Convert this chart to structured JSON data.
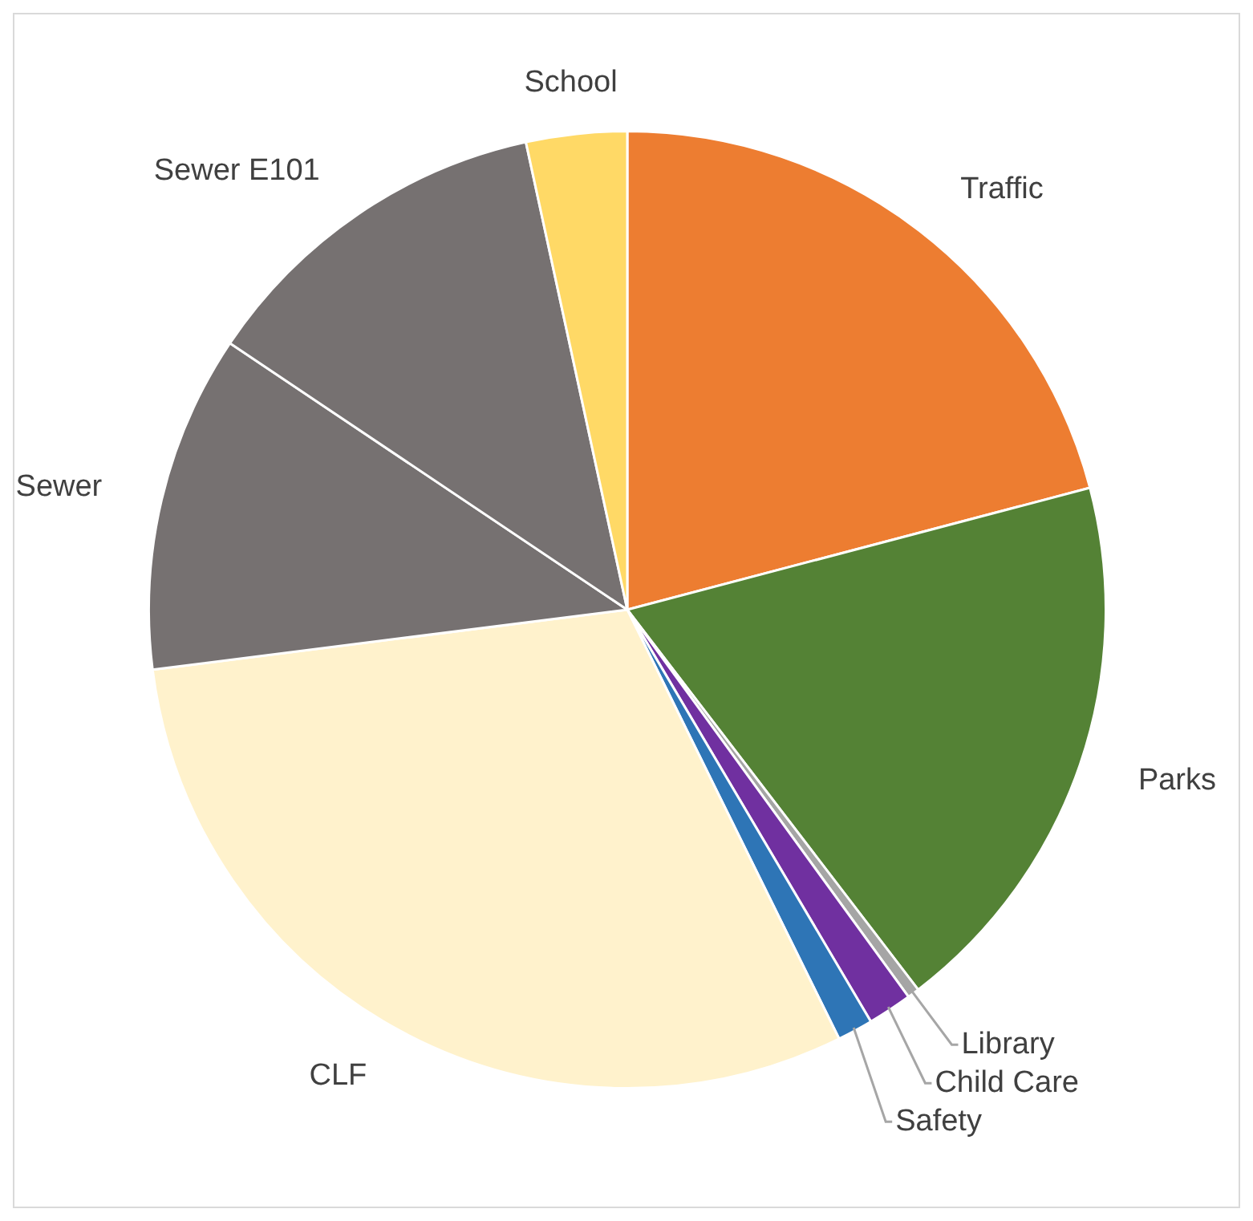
{
  "chart_data": {
    "type": "pie",
    "categories": [
      "Traffic",
      "Parks",
      "Library",
      "Child Care",
      "Safety",
      "CLF",
      "Sewer",
      "Sewer E101",
      "School"
    ],
    "values": [
      20.9,
      18.7,
      0.4,
      1.5,
      1.2,
      30.3,
      11.4,
      12.2,
      3.4
    ],
    "colors": [
      "#ed7d31",
      "#548235",
      "#a5a5a5",
      "#7030a0",
      "#2e75b6",
      "#fff2cc",
      "#767171",
      "#767171",
      "#ffd966"
    ],
    "legend": false
  }
}
